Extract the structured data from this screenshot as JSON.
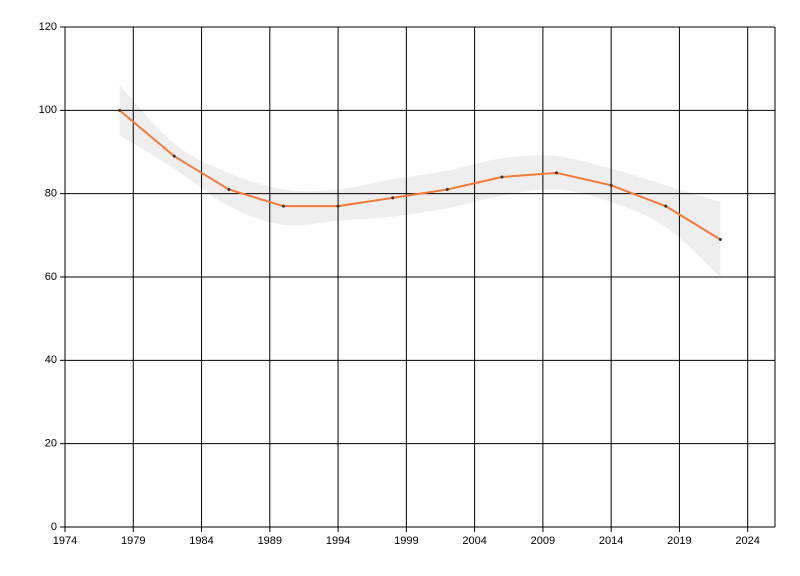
{
  "chart_data": {
    "type": "line",
    "x": [
      1978,
      1982,
      1986,
      1990,
      1994,
      1998,
      2002,
      2006,
      2010,
      2014,
      2018,
      2022
    ],
    "series": [
      {
        "color": "#f47a3a",
        "values": [
          100,
          89,
          81,
          77,
          77,
          79,
          81,
          84,
          85,
          82,
          77,
          69
        ]
      }
    ],
    "band": {
      "color": "#eeeeee",
      "upper": [
        106,
        92,
        85,
        81,
        81,
        83.5,
        85.5,
        88.5,
        89,
        86,
        82,
        78
      ],
      "lower": [
        94,
        86,
        77,
        72.5,
        73.5,
        74.5,
        76.5,
        79.5,
        81,
        78,
        72,
        60
      ]
    },
    "xlim": [
      1974,
      2026
    ],
    "xticks": [
      1974,
      1979,
      1984,
      1989,
      1994,
      1999,
      2004,
      2009,
      2014,
      2019,
      2024
    ],
    "ylim": [
      0,
      120
    ],
    "yticks": [
      0,
      20,
      40,
      60,
      80,
      100,
      120
    ],
    "grid": true
  }
}
